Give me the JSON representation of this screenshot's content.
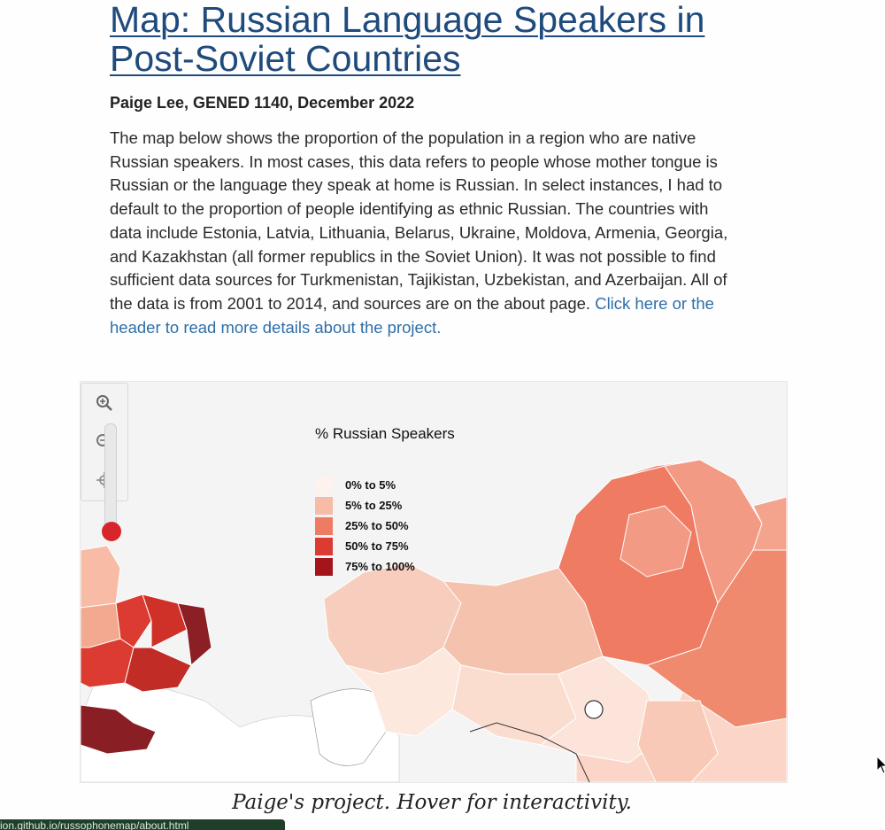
{
  "header": {
    "title": "Map: Russian Language Speakers in Post-Soviet Countries",
    "byline": "Paige Lee, GENED 1140, December 2022"
  },
  "intro": {
    "text": "The map below shows the proportion of the population in a region who are native Russian speakers. In most cases, this data refers to people whose mother tongue is Russian or the language they speak at home is Russian. In select instances, I had to default to the proportion of people identifying as ethnic Russian. The countries with data include Estonia, Latvia, Lithuania, Belarus, Ukraine, Moldova, Armenia, Georgia, and Kazakhstan (all former republics in the Soviet Union). It was not possible to find sufficient data sources for Turkmenistan, Tajikistan, Uzbekistan, and Azerbaijan. All of the data is from 2001 to 2014, and sources are on the about page.",
    "link_text": "Click here or the header to read more details about the project."
  },
  "map": {
    "legend": {
      "title": "% Russian Speakers",
      "items": [
        {
          "label": "0% to 5%",
          "color": "#fdf2ee"
        },
        {
          "label": "5% to 25%",
          "color": "#f7bba6"
        },
        {
          "label": "25% to 50%",
          "color": "#ef7b62"
        },
        {
          "label": "50% to 75%",
          "color": "#db3b30"
        },
        {
          "label": "75% to 100%",
          "color": "#a3151b"
        }
      ]
    },
    "controls": {
      "zoom_in_icon": "zoom-in-icon",
      "zoom_out_icon": "zoom-out-icon",
      "reset_icon": "reset-view-icon"
    }
  },
  "caption": "Paige's project. Hover for interactivity.",
  "status_url": "ion.github.io/russophonemap/about.html"
}
